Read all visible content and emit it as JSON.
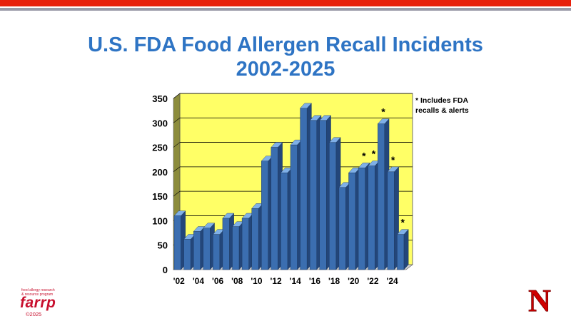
{
  "header": {
    "title_line1": "U.S. FDA Food Allergen Recall Incidents",
    "title_line2": "2002-2025"
  },
  "note": {
    "line1": "* Includes FDA",
    "line2": "recalls & alerts"
  },
  "logo": {
    "sub_line1": "food allergy research",
    "sub_line2": "& resource program",
    "word": "farrp",
    "copyright": "©2025"
  },
  "brand_logo": {
    "letter": "N"
  },
  "colors": {
    "bar_front": "#3b6eb0",
    "bar_top": "#7fb0e8",
    "plot_bg": "#ffff66",
    "title": "#2e74c4",
    "accent_red": "#e8200c"
  },
  "chart_data": {
    "type": "bar",
    "title": "U.S. FDA Food Allergen Recall Incidents 2002-2025",
    "xlabel": "",
    "ylabel": "",
    "ylim": [
      0,
      350
    ],
    "yticks": [
      0,
      50,
      100,
      150,
      200,
      250,
      300,
      350
    ],
    "categories": [
      "2002",
      "2003",
      "2004",
      "2005",
      "2006",
      "2007",
      "2008",
      "2009",
      "2010",
      "2011",
      "2012",
      "2013",
      "2014",
      "2015",
      "2016",
      "2017",
      "2018",
      "2019",
      "2020",
      "2021",
      "2022",
      "2023",
      "2024",
      "2025"
    ],
    "xtick_labels": [
      "'02",
      "",
      "'04",
      "",
      "'06",
      "",
      "'08",
      "",
      "'10",
      "",
      "'12",
      "",
      "'14",
      "",
      "'16",
      "",
      "'18",
      "",
      "'20",
      "",
      "'22",
      "",
      "'24",
      ""
    ],
    "values": [
      110,
      62,
      78,
      85,
      72,
      105,
      88,
      105,
      125,
      222,
      250,
      198,
      255,
      330,
      305,
      305,
      260,
      168,
      198,
      208,
      212,
      298,
      200,
      72
    ],
    "annotations": [
      "",
      "",
      "",
      "",
      "",
      "",
      "",
      "",
      "",
      "",
      "",
      "",
      "",
      "",
      "",
      "",
      "",
      "",
      "",
      "*",
      "*",
      "*",
      "*",
      "*"
    ],
    "grid": true,
    "style": "3d"
  }
}
